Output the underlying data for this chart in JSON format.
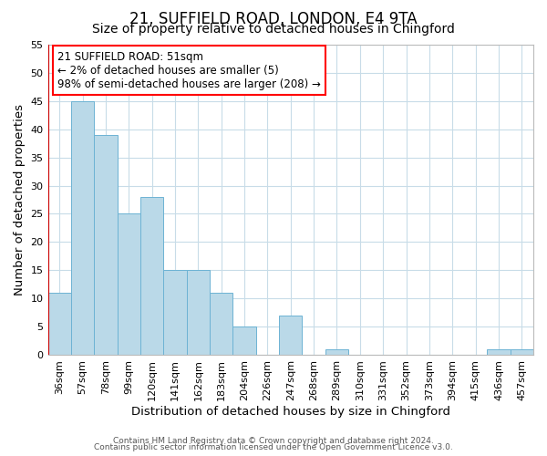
{
  "title1": "21, SUFFIELD ROAD, LONDON, E4 9TA",
  "title2": "Size of property relative to detached houses in Chingford",
  "xlabel": "Distribution of detached houses by size in Chingford",
  "ylabel": "Number of detached properties",
  "bar_labels": [
    "36sqm",
    "57sqm",
    "78sqm",
    "99sqm",
    "120sqm",
    "141sqm",
    "162sqm",
    "183sqm",
    "204sqm",
    "226sqm",
    "247sqm",
    "268sqm",
    "289sqm",
    "310sqm",
    "331sqm",
    "352sqm",
    "373sqm",
    "394sqm",
    "415sqm",
    "436sqm",
    "457sqm"
  ],
  "bar_heights": [
    11,
    45,
    39,
    25,
    28,
    15,
    15,
    11,
    5,
    0,
    7,
    0,
    1,
    0,
    0,
    0,
    0,
    0,
    0,
    1,
    1
  ],
  "bar_color": "#bad9e8",
  "bar_edge_color": "#6db3d4",
  "highlight_color": "#cc0000",
  "ylim": [
    0,
    55
  ],
  "yticks": [
    0,
    5,
    10,
    15,
    20,
    25,
    30,
    35,
    40,
    45,
    50,
    55
  ],
  "annotation_title": "21 SUFFIELD ROAD: 51sqm",
  "annotation_line1": "← 2% of detached houses are smaller (5)",
  "annotation_line2": "98% of semi-detached houses are larger (208) →",
  "footer1": "Contains HM Land Registry data © Crown copyright and database right 2024.",
  "footer2": "Contains public sector information licensed under the Open Government Licence v3.0.",
  "bg_color": "#ffffff",
  "grid_color": "#c8dce8",
  "title_fontsize": 12,
  "subtitle_fontsize": 10,
  "axis_label_fontsize": 9.5,
  "tick_fontsize": 8,
  "annotation_fontsize": 8.5,
  "footer_fontsize": 6.5
}
